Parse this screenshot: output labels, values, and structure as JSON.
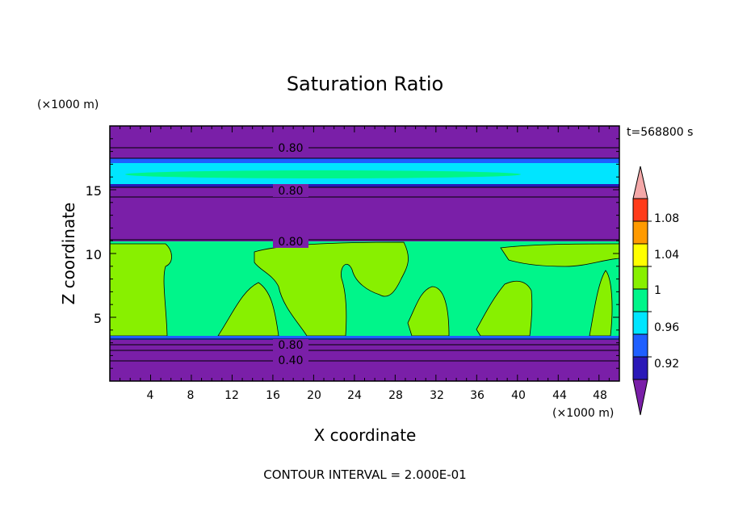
{
  "chart_data": {
    "type": "heatmap",
    "title": "Saturation Ratio",
    "xlabel": "X coordinate",
    "ylabel": "Z coordinate",
    "x_unit": "(×1000 m)",
    "y_unit": "(×1000 m)",
    "time_label": "t=568800 s",
    "footer": "CONTOUR INTERVAL = 2.000E-01",
    "xlim": [
      0,
      50
    ],
    "ylim": [
      0,
      20
    ],
    "x_ticks": [
      "4",
      "8",
      "12",
      "16",
      "20",
      "24",
      "28",
      "32",
      "36",
      "40",
      "44",
      "48"
    ],
    "y_ticks": [
      "5",
      "10",
      "15"
    ],
    "contour_labels": [
      "0.80",
      "0.80",
      "0.80",
      "0.80",
      "0.40"
    ],
    "colorbar": {
      "labels": [
        "1.08",
        "1.04",
        "1",
        "0.96",
        "0.92"
      ],
      "levels": [
        0.92,
        0.94,
        0.96,
        0.98,
        1.0,
        1.02,
        1.04,
        1.06,
        1.08,
        1.1
      ],
      "colors": [
        "#7a1fa8",
        "#2a18b8",
        "#1f5fff",
        "#00e5ff",
        "#00f58a",
        "#88f000",
        "#ffff00",
        "#ff9a00",
        "#ff3b1a",
        "#f4a8a8"
      ]
    },
    "layers": [
      {
        "z": [
          15.8,
          17.2
        ],
        "value": ">0.96",
        "color": "#00e5ff"
      },
      {
        "z": [
          11,
          15.3
        ],
        "value": "<0.92",
        "color": "#7a1fa8"
      },
      {
        "z": [
          3.3,
          11
        ],
        "value": "~1.00",
        "color": "#00f58a"
      },
      {
        "z": [
          0,
          3.3
        ],
        "value": "<0.92",
        "color": "#7a1fa8"
      }
    ]
  }
}
